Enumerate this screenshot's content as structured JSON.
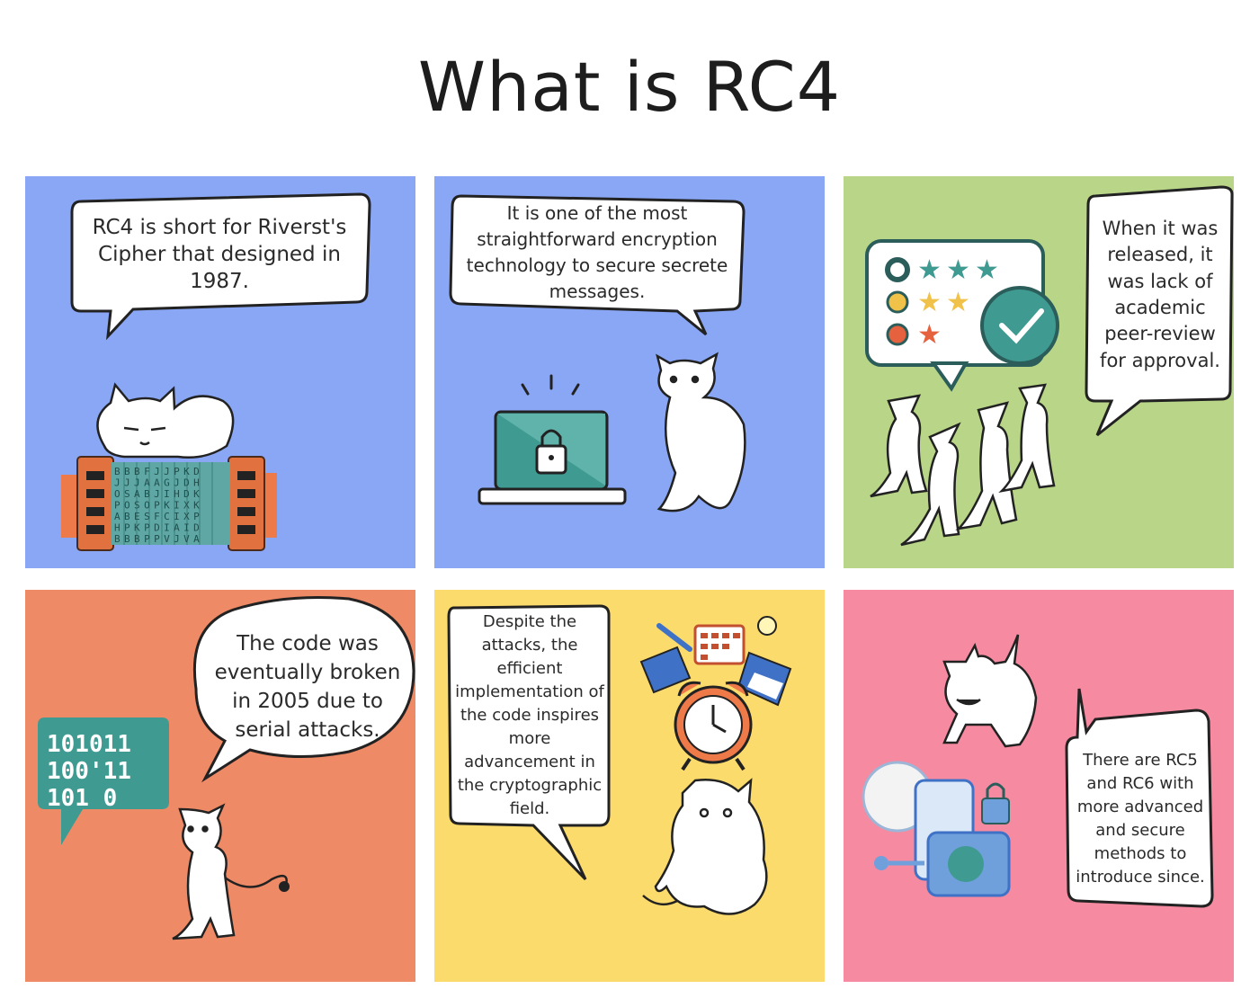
{
  "title": "What is RC4",
  "colors": {
    "blue": "#8aa7f5",
    "green": "#b9d688",
    "orange": "#ef8a66",
    "yellow": "#fcdb6d",
    "pink": "#f68aa0",
    "teal": "#3f9a92",
    "outline": "#222222"
  },
  "panels": [
    {
      "text": "RC4 is short for Riverst's Cipher that designed in 1987.",
      "icons": [
        "cat-icon",
        "cryptex-icon"
      ]
    },
    {
      "text": "It is one of the most straightforward encryption technology to secure secrete messages.",
      "icons": [
        "laptop-lock-icon",
        "cat-icon"
      ]
    },
    {
      "text": "When it was released, it was lack of academic peer-review for approval.",
      "icons": [
        "rating-card-icon",
        "check-icon",
        "cats-cheering-icon"
      ]
    },
    {
      "text": "The code was eventually broken in 2005 due to serial attacks.",
      "icons": [
        "binary-bubble-icon",
        "cat-icon"
      ]
    },
    {
      "text": "Despite the attacks, the efficient implementation of the code inspires more advancement in the cryptographic field.",
      "icons": [
        "office-tools-icon",
        "alarm-clock-icon",
        "cat-icon"
      ]
    },
    {
      "text": "There are RC5 and RC6 with more advanced and secure methods to introduce since.",
      "icons": [
        "cat-icon",
        "security-lock-icon"
      ]
    }
  ],
  "binary_rows": [
    "101011",
    "100'11",
    "101   0"
  ],
  "cryptex_rows": [
    "BBBFJJPKD",
    "JJJAAGJDH",
    "OSABJIHDK",
    "POSOPKIXK",
    "ABESFCIXP",
    "HPKPDIAID",
    "BBBPPVJVA"
  ]
}
